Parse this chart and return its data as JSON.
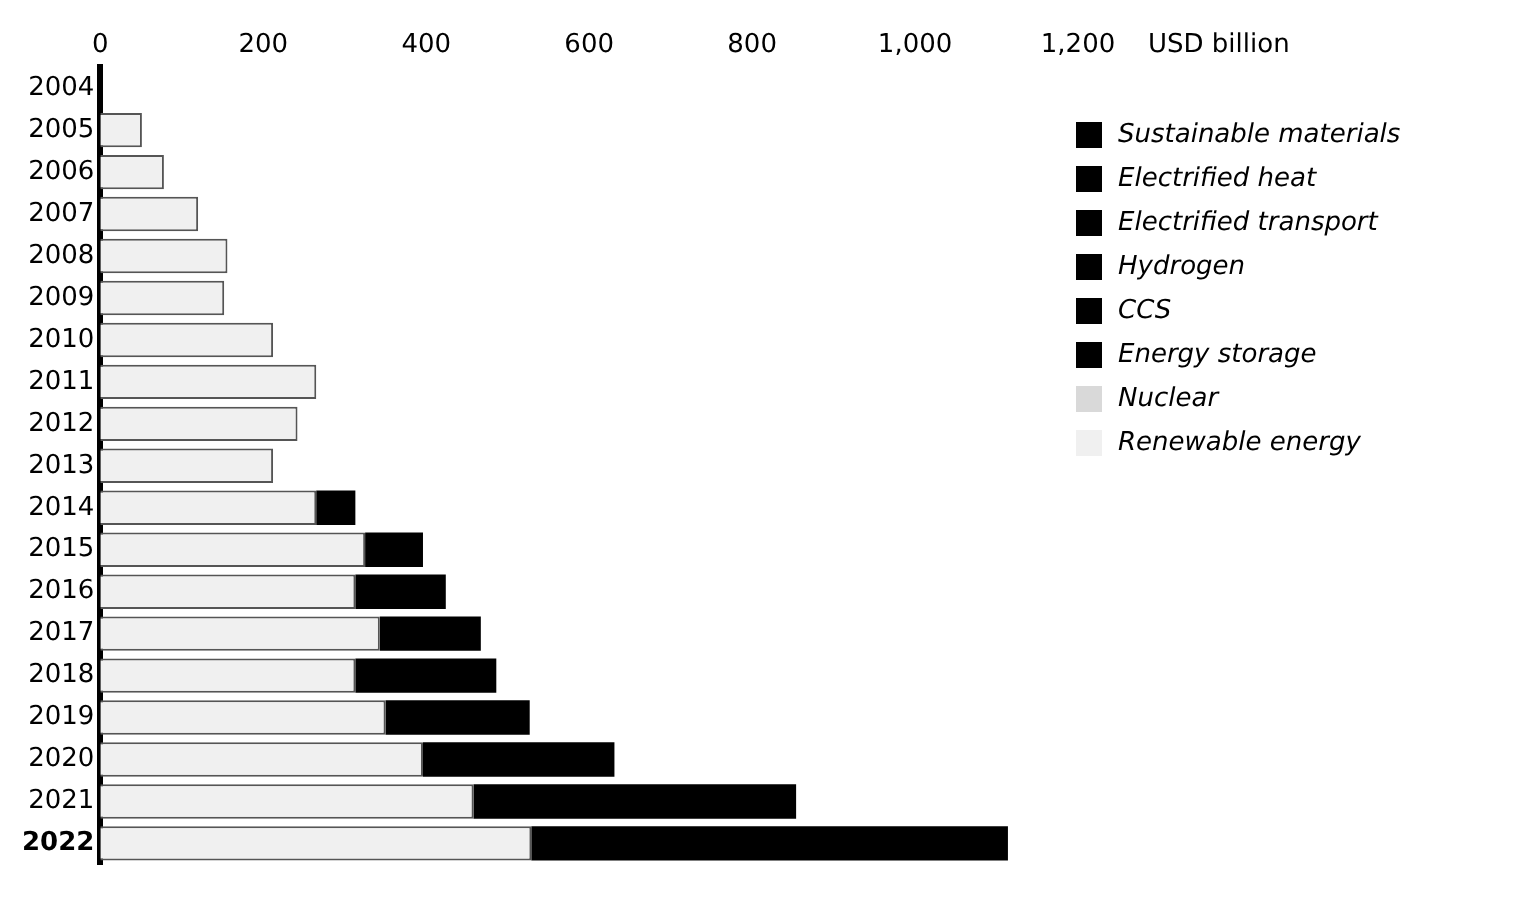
{
  "chart_data": {
    "type": "bar",
    "orientation": "horizontal",
    "stacked": true,
    "xlabel": "USD billion",
    "categories": [
      "2004",
      "2005",
      "2006",
      "2007",
      "2008",
      "2009",
      "2010",
      "2011",
      "2012",
      "2013",
      "2014",
      "2015",
      "2016",
      "2017",
      "2018",
      "2019",
      "2020",
      "2021",
      "2022"
    ],
    "series": [
      {
        "name": "Renewable energy",
        "color": "#f0f0f0",
        "values": [
          null,
          51,
          78,
          120,
          156,
          152,
          212,
          265,
          242,
          212,
          265,
          325,
          313,
          343,
          313,
          350,
          396,
          458,
          529
        ]
      },
      {
        "name": "Nuclear",
        "color": "#d9d9d9",
        "values": [
          null,
          null,
          null,
          null,
          null,
          null,
          null,
          null,
          null,
          null,
          null,
          null,
          null,
          null,
          null,
          null,
          null,
          null,
          null
        ]
      },
      {
        "name": "Energy storage",
        "color": "#000000",
        "values": [
          null,
          null,
          null,
          null,
          null,
          null,
          null,
          null,
          null,
          null,
          null,
          null,
          null,
          null,
          null,
          null,
          null,
          null,
          null
        ]
      },
      {
        "name": "CCS",
        "color": "#000000",
        "values": [
          null,
          null,
          null,
          null,
          null,
          null,
          null,
          null,
          null,
          null,
          null,
          null,
          null,
          null,
          null,
          null,
          null,
          null,
          null
        ]
      },
      {
        "name": "Hydrogen",
        "color": "#000000",
        "values": [
          null,
          null,
          null,
          null,
          null,
          null,
          null,
          null,
          null,
          null,
          null,
          null,
          null,
          null,
          null,
          null,
          null,
          null,
          null
        ]
      },
      {
        "name": "Electrified transport",
        "color": "#000000",
        "values": [
          null,
          null,
          null,
          null,
          null,
          null,
          null,
          null,
          null,
          null,
          48,
          71,
          111,
          124,
          173,
          177,
          235,
          396,
          585
        ]
      },
      {
        "name": "Electrified heat",
        "color": "#000000",
        "values": [
          null,
          null,
          null,
          null,
          null,
          null,
          null,
          null,
          null,
          null,
          null,
          null,
          null,
          null,
          null,
          null,
          null,
          null,
          null
        ]
      },
      {
        "name": "Sustainable materials",
        "color": "#000000",
        "values": [
          null,
          null,
          null,
          null,
          null,
          null,
          null,
          null,
          null,
          null,
          null,
          null,
          null,
          null,
          null,
          null,
          null,
          null,
          null
        ]
      }
    ],
    "xlim": [
      0,
      1200
    ],
    "xticks": [
      0,
      200,
      400,
      600,
      800,
      {
        "value": 1000,
        "label": "1,000"
      },
      {
        "value": 1200,
        "label": "1,200"
      }
    ],
    "grid": false,
    "legend": "right"
  }
}
